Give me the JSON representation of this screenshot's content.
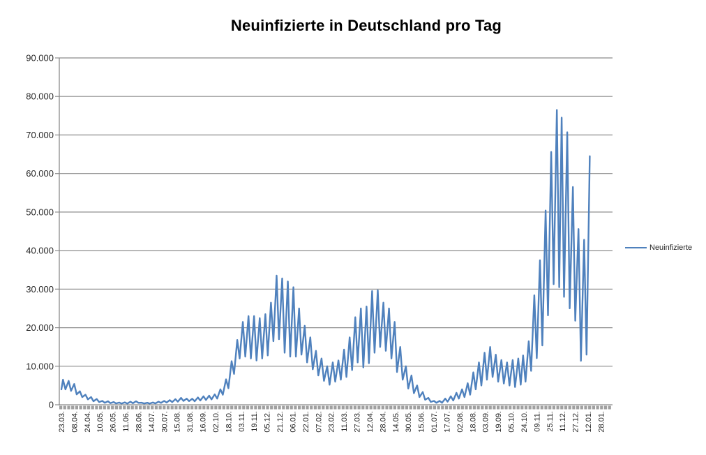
{
  "title": "Neuinfizierte in Deutschland pro Tag",
  "legend": {
    "label": "Neuinfizierte",
    "line_color": "#4F81BD"
  },
  "colors": {
    "line": "#4F81BD",
    "grid": "#8B8B8B",
    "axis": "#8B8B8B",
    "tick_comb": "#A0A0A0",
    "text": "#262626",
    "title": "#000000",
    "background": "#FFFFFF"
  },
  "chart_data": {
    "type": "line",
    "title": "Neuinfizierte in Deutschland pro Tag",
    "xlabel": "",
    "ylabel": "",
    "ylim": [
      0,
      90000
    ],
    "y_tick_step": 10000,
    "grid": true,
    "legend_position": "right",
    "x_label_rotation": 90,
    "x_label_interval_days": 16,
    "x_tick_labels": [
      "23.03.",
      "08.04.",
      "24.04.",
      "10.05.",
      "26.05.",
      "11.06.",
      "28.06.",
      "14.07.",
      "30.07.",
      "15.08.",
      "31.08.",
      "16.09.",
      "02.10.",
      "18.10.",
      "03.11.",
      "19.11.",
      "05.12.",
      "21.12.",
      "06.01.",
      "22.01.",
      "07.02.",
      "23.02.",
      "11.03.",
      "27.03.",
      "12.04.",
      "28.04.",
      "14.05.",
      "30.05.",
      "15.06.",
      "01.07.",
      "17.07.",
      "02.08.",
      "18.08.",
      "03.09.",
      "19.09.",
      "05.10.",
      "24.10.",
      "09.11.",
      "25.11.",
      "11.12.",
      "27.12.",
      "12.01.",
      "28.01."
    ],
    "y_tick_labels": [
      "0",
      "10.000",
      "20.000",
      "30.000",
      "40.000",
      "50.000",
      "60.000",
      "70.000",
      "80.000",
      "90.000"
    ],
    "series": [
      {
        "name": "Neuinfizierte",
        "color": "#4F81BD",
        "points_format": "[day_index_from_23.03., new_infections] weekly peak/trough envelope estimated from pixels",
        "points": [
          [
            0,
            4000
          ],
          [
            2,
            6500
          ],
          [
            5,
            4000
          ],
          [
            9,
            6200
          ],
          [
            12,
            3600
          ],
          [
            16,
            5400
          ],
          [
            19,
            2700
          ],
          [
            23,
            3500
          ],
          [
            26,
            2000
          ],
          [
            30,
            2600
          ],
          [
            33,
            1400
          ],
          [
            37,
            2000
          ],
          [
            40,
            900
          ],
          [
            44,
            1500
          ],
          [
            47,
            700
          ],
          [
            51,
            1000
          ],
          [
            54,
            500
          ],
          [
            58,
            900
          ],
          [
            61,
            420
          ],
          [
            65,
            700
          ],
          [
            68,
            350
          ],
          [
            72,
            560
          ],
          [
            75,
            300
          ],
          [
            79,
            620
          ],
          [
            82,
            310
          ],
          [
            86,
            800
          ],
          [
            89,
            400
          ],
          [
            93,
            900
          ],
          [
            96,
            480
          ],
          [
            100,
            520
          ],
          [
            103,
            330
          ],
          [
            107,
            500
          ],
          [
            110,
            300
          ],
          [
            114,
            600
          ],
          [
            117,
            350
          ],
          [
            121,
            800
          ],
          [
            124,
            480
          ],
          [
            128,
            1000
          ],
          [
            131,
            580
          ],
          [
            135,
            1200
          ],
          [
            138,
            680
          ],
          [
            142,
            1450
          ],
          [
            145,
            800
          ],
          [
            149,
            1800
          ],
          [
            152,
            1000
          ],
          [
            156,
            1600
          ],
          [
            159,
            950
          ],
          [
            163,
            1550
          ],
          [
            166,
            900
          ],
          [
            170,
            1900
          ],
          [
            173,
            1100
          ],
          [
            177,
            2200
          ],
          [
            180,
            1250
          ],
          [
            184,
            2350
          ],
          [
            187,
            1400
          ],
          [
            191,
            2700
          ],
          [
            194,
            1600
          ],
          [
            198,
            4000
          ],
          [
            201,
            2600
          ],
          [
            205,
            6600
          ],
          [
            208,
            4300
          ],
          [
            212,
            11300
          ],
          [
            215,
            8000
          ],
          [
            219,
            16800
          ],
          [
            222,
            12000
          ],
          [
            226,
            21500
          ],
          [
            229,
            12500
          ],
          [
            233,
            23000
          ],
          [
            236,
            12000
          ],
          [
            240,
            23000
          ],
          [
            243,
            11500
          ],
          [
            247,
            22500
          ],
          [
            250,
            12000
          ],
          [
            254,
            23500
          ],
          [
            257,
            12800
          ],
          [
            261,
            26500
          ],
          [
            264,
            16500
          ],
          [
            268,
            33500
          ],
          [
            271,
            17000
          ],
          [
            275,
            32800
          ],
          [
            278,
            13500
          ],
          [
            282,
            32000
          ],
          [
            285,
            12500
          ],
          [
            289,
            30500
          ],
          [
            292,
            12500
          ],
          [
            296,
            25000
          ],
          [
            299,
            13000
          ],
          [
            303,
            20500
          ],
          [
            306,
            11000
          ],
          [
            310,
            17500
          ],
          [
            313,
            9200
          ],
          [
            317,
            14000
          ],
          [
            320,
            7600
          ],
          [
            324,
            12000
          ],
          [
            327,
            6200
          ],
          [
            331,
            10000
          ],
          [
            334,
            5200
          ],
          [
            338,
            11000
          ],
          [
            341,
            6000
          ],
          [
            345,
            11500
          ],
          [
            348,
            6500
          ],
          [
            352,
            14300
          ],
          [
            355,
            7200
          ],
          [
            359,
            17500
          ],
          [
            362,
            9000
          ],
          [
            366,
            22700
          ],
          [
            369,
            11000
          ],
          [
            373,
            25000
          ],
          [
            376,
            9700
          ],
          [
            380,
            25500
          ],
          [
            383,
            10800
          ],
          [
            387,
            29500
          ],
          [
            390,
            13500
          ],
          [
            394,
            29700
          ],
          [
            397,
            15000
          ],
          [
            401,
            26500
          ],
          [
            404,
            14000
          ],
          [
            408,
            25000
          ],
          [
            411,
            12000
          ],
          [
            415,
            21500
          ],
          [
            418,
            8500
          ],
          [
            422,
            15000
          ],
          [
            425,
            6500
          ],
          [
            429,
            10000
          ],
          [
            432,
            4200
          ],
          [
            436,
            7600
          ],
          [
            439,
            3000
          ],
          [
            443,
            5000
          ],
          [
            446,
            2000
          ],
          [
            450,
            3300
          ],
          [
            453,
            1300
          ],
          [
            457,
            1800
          ],
          [
            460,
            750
          ],
          [
            464,
            1000
          ],
          [
            467,
            500
          ],
          [
            471,
            1000
          ],
          [
            474,
            520
          ],
          [
            478,
            1600
          ],
          [
            481,
            800
          ],
          [
            485,
            2200
          ],
          [
            488,
            1100
          ],
          [
            492,
            3100
          ],
          [
            495,
            1600
          ],
          [
            499,
            4000
          ],
          [
            502,
            2000
          ],
          [
            506,
            5600
          ],
          [
            509,
            2600
          ],
          [
            513,
            8400
          ],
          [
            516,
            4000
          ],
          [
            520,
            11000
          ],
          [
            523,
            5000
          ],
          [
            527,
            13500
          ],
          [
            530,
            6500
          ],
          [
            534,
            15000
          ],
          [
            537,
            7200
          ],
          [
            541,
            13000
          ],
          [
            544,
            6000
          ],
          [
            548,
            11600
          ],
          [
            551,
            5500
          ],
          [
            555,
            11000
          ],
          [
            558,
            5000
          ],
          [
            562,
            11600
          ],
          [
            565,
            4600
          ],
          [
            569,
            12000
          ],
          [
            572,
            5200
          ],
          [
            575,
            12800
          ],
          [
            578,
            6000
          ],
          [
            582,
            16500
          ],
          [
            585,
            8800
          ],
          [
            589,
            28400
          ],
          [
            592,
            12100
          ],
          [
            596,
            37500
          ],
          [
            599,
            15400
          ],
          [
            603,
            50400
          ],
          [
            606,
            23200
          ],
          [
            610,
            65600
          ],
          [
            613,
            31300
          ],
          [
            617,
            76500
          ],
          [
            620,
            30500
          ],
          [
            623,
            74500
          ],
          [
            626,
            28000
          ],
          [
            630,
            70700
          ],
          [
            633,
            25000
          ],
          [
            637,
            56500
          ],
          [
            640,
            21800
          ],
          [
            644,
            45600
          ],
          [
            647,
            11400
          ],
          [
            651,
            42800
          ],
          [
            654,
            13000
          ],
          [
            658,
            64500
          ]
        ]
      }
    ]
  }
}
